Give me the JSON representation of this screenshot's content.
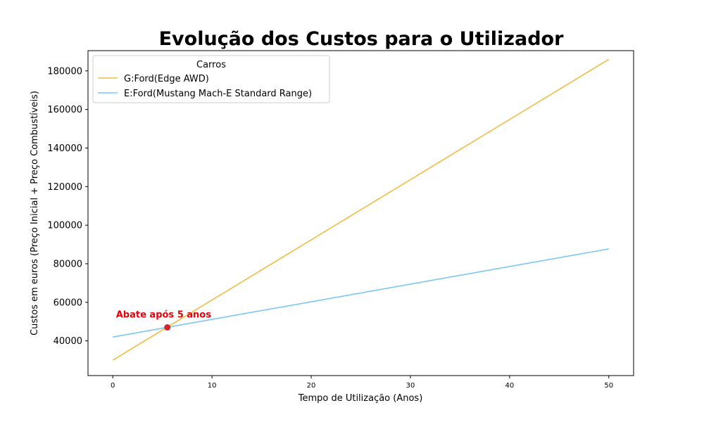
{
  "chart_data": {
    "type": "line",
    "title": "Evolução dos Custos para o Utilizador",
    "xlabel": "Tempo de Utilização (Anos)",
    "ylabel": "Custos em euros (Preço Inicial + Preço Combustíveis)",
    "xlim": [
      -2.5,
      52.5
    ],
    "ylim": [
      22000,
      190500
    ],
    "xticks": [
      0,
      10,
      20,
      30,
      40,
      50
    ],
    "yticks": [
      40000,
      60000,
      80000,
      100000,
      120000,
      140000,
      160000,
      180000
    ],
    "legend": {
      "title": "Carros",
      "placement": "top-left"
    },
    "series": [
      {
        "name": "G:Ford(Edge AWD)",
        "color": "#f0bc42",
        "x": [
          0,
          50
        ],
        "y": [
          30000,
          186000
        ]
      },
      {
        "name": "E:Ford(Mustang Mach-E Standard Range)",
        "color": "#7cc6f2",
        "x": [
          0,
          50
        ],
        "y": [
          42000,
          87700
        ]
      }
    ],
    "annotation": {
      "text": "Abate após 5 anos",
      "x": 5.5,
      "y": 47000,
      "color": "#e8000b",
      "marker_color": "#d62728"
    }
  }
}
